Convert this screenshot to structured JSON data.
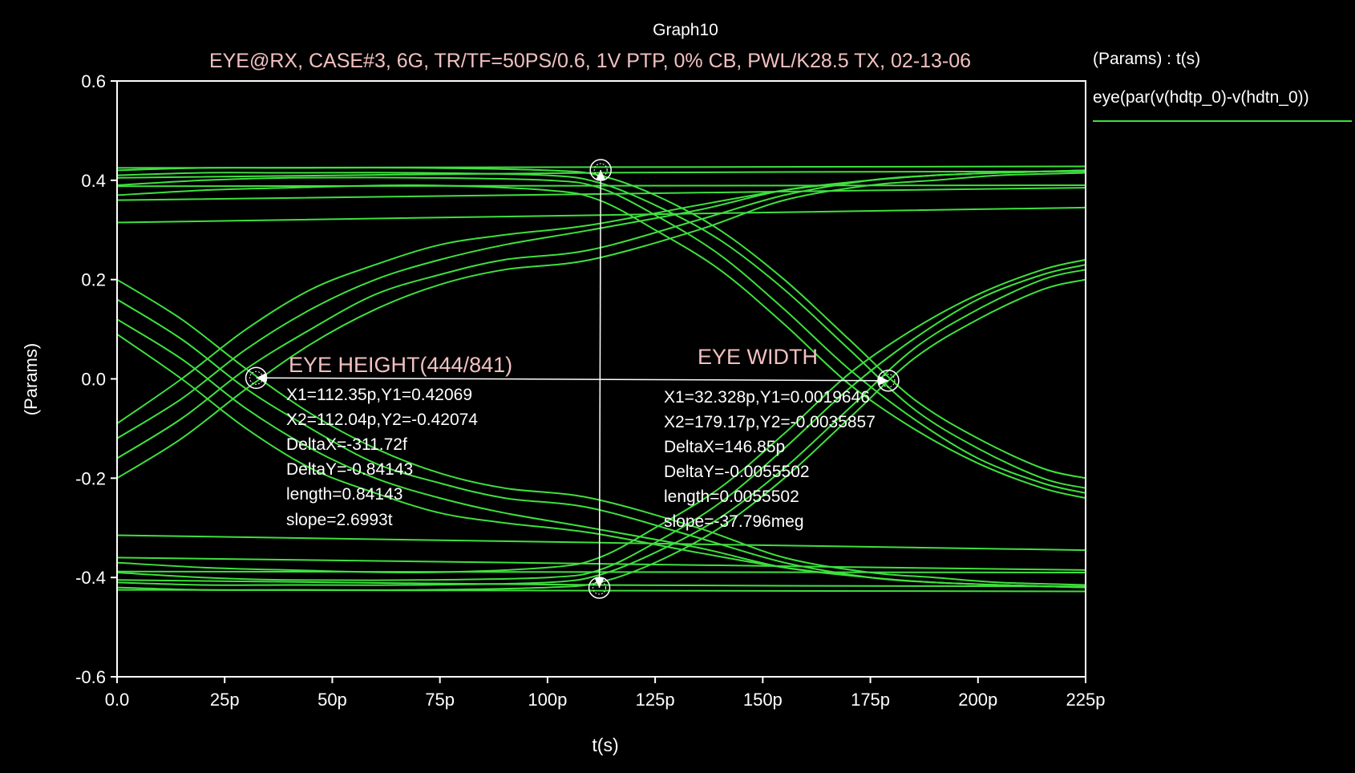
{
  "chart_data": {
    "type": "line",
    "graph_label": "Graph10",
    "title": "EYE@RX, CASE#3, 6G, TR/TF=50PS/0.6, 1V PTP, 0% CB, PWL/K28.5 TX, 02-13-06",
    "xlabel": "t(s)",
    "ylabel": "(Params)",
    "xlim": [
      0,
      225
    ],
    "x_unit": "ps",
    "ylim": [
      -0.6,
      0.6
    ],
    "x_ticks": [
      0,
      25,
      50,
      75,
      100,
      125,
      150,
      175,
      200,
      225
    ],
    "x_tick_labels": [
      "0.0",
      "25p",
      "50p",
      "75p",
      "100p",
      "125p",
      "150p",
      "175p",
      "200p",
      "225p"
    ],
    "y_ticks": [
      0.6,
      0.4,
      0.2,
      0.0,
      -0.2,
      -0.4,
      -0.6
    ],
    "y_tick_labels": [
      "0.6",
      "0.4",
      "0.2",
      "0.0",
      "-0.2",
      "-0.4",
      "-0.6"
    ],
    "grid": false,
    "legend_position": "right",
    "legend": {
      "header": "(Params) : t(s)",
      "entry": "eye(par(v(hdtp_0)-v(hdtn_0))"
    },
    "series_color": "#3ee03e",
    "background": "#000000",
    "series": [
      {
        "x": [
          0,
          225
        ],
        "y": [
          0.425,
          0.428
        ]
      },
      {
        "x": [
          0,
          112,
          225
        ],
        "y": [
          0.405,
          0.415,
          0.418
        ]
      },
      {
        "x": [
          0,
          225
        ],
        "y": [
          0.388,
          0.39
        ]
      },
      {
        "x": [
          0,
          225
        ],
        "y": [
          0.36,
          0.385
        ]
      },
      {
        "x": [
          0,
          225
        ],
        "y": [
          0.315,
          0.345
        ]
      },
      {
        "x": [
          0,
          225
        ],
        "y": [
          -0.425,
          -0.428
        ]
      },
      {
        "x": [
          0,
          112,
          225
        ],
        "y": [
          -0.405,
          -0.415,
          -0.418
        ]
      },
      {
        "x": [
          0,
          225
        ],
        "y": [
          -0.388,
          -0.39
        ]
      },
      {
        "x": [
          0,
          225
        ],
        "y": [
          -0.36,
          -0.385
        ]
      },
      {
        "x": [
          0,
          225
        ],
        "y": [
          -0.315,
          -0.345
        ]
      },
      {
        "x": [
          0,
          15,
          30,
          45,
          60,
          75,
          90,
          110,
          135,
          155,
          175,
          190,
          205,
          225
        ],
        "y": [
          -0.2,
          -0.12,
          -0.02,
          0.07,
          0.14,
          0.19,
          0.22,
          0.24,
          0.3,
          0.36,
          0.39,
          0.4,
          0.41,
          0.415
        ]
      },
      {
        "x": [
          0,
          15,
          30,
          45,
          60,
          75,
          90,
          110,
          135,
          155,
          175,
          190,
          205,
          225
        ],
        "y": [
          -0.16,
          -0.08,
          0.02,
          0.1,
          0.17,
          0.21,
          0.24,
          0.26,
          0.32,
          0.37,
          0.4,
          0.41,
          0.415,
          0.42
        ]
      },
      {
        "x": [
          0,
          15,
          30,
          45,
          60,
          75,
          90,
          110,
          135,
          155,
          175,
          190,
          205,
          225
        ],
        "y": [
          -0.12,
          -0.04,
          0.06,
          0.14,
          0.2,
          0.24,
          0.27,
          0.3,
          0.34,
          0.38,
          0.4,
          0.41,
          0.415,
          0.42
        ]
      },
      {
        "x": [
          0,
          15,
          30,
          45,
          60,
          75,
          90,
          110,
          135,
          155,
          175,
          190,
          205,
          225
        ],
        "y": [
          -0.09,
          0.0,
          0.1,
          0.18,
          0.23,
          0.27,
          0.29,
          0.31,
          0.35,
          0.38,
          0.4,
          0.41,
          0.415,
          0.42
        ]
      },
      {
        "x": [
          0,
          15,
          30,
          45,
          60,
          75,
          90,
          110,
          135,
          155,
          175,
          190,
          205,
          225
        ],
        "y": [
          0.2,
          0.12,
          0.02,
          -0.07,
          -0.14,
          -0.19,
          -0.22,
          -0.24,
          -0.3,
          -0.36,
          -0.39,
          -0.4,
          -0.41,
          -0.415
        ]
      },
      {
        "x": [
          0,
          15,
          30,
          45,
          60,
          75,
          90,
          110,
          135,
          155,
          175,
          190,
          205,
          225
        ],
        "y": [
          0.16,
          0.08,
          -0.02,
          -0.1,
          -0.17,
          -0.21,
          -0.24,
          -0.26,
          -0.32,
          -0.37,
          -0.4,
          -0.41,
          -0.415,
          -0.42
        ]
      },
      {
        "x": [
          0,
          15,
          30,
          45,
          60,
          75,
          90,
          110,
          135,
          155,
          175,
          190,
          205,
          225
        ],
        "y": [
          0.12,
          0.04,
          -0.06,
          -0.14,
          -0.2,
          -0.24,
          -0.27,
          -0.3,
          -0.34,
          -0.38,
          -0.4,
          -0.41,
          -0.415,
          -0.42
        ]
      },
      {
        "x": [
          0,
          15,
          30,
          45,
          60,
          75,
          90,
          110,
          135,
          155,
          175,
          190,
          205,
          225
        ],
        "y": [
          0.09,
          0.0,
          -0.1,
          -0.18,
          -0.23,
          -0.27,
          -0.29,
          -0.31,
          -0.35,
          -0.38,
          -0.4,
          -0.41,
          -0.415,
          -0.42
        ]
      },
      {
        "x": [
          0,
          20,
          40,
          70,
          100,
          112,
          125,
          140,
          155,
          170,
          185,
          200,
          215,
          225
        ],
        "y": [
          0.42,
          0.425,
          0.425,
          0.425,
          0.42,
          0.41,
          0.37,
          0.3,
          0.2,
          0.08,
          -0.04,
          -0.12,
          -0.18,
          -0.2
        ]
      },
      {
        "x": [
          0,
          20,
          40,
          70,
          100,
          112,
          125,
          140,
          155,
          170,
          185,
          200,
          215,
          225
        ],
        "y": [
          0.41,
          0.415,
          0.415,
          0.415,
          0.41,
          0.395,
          0.35,
          0.28,
          0.18,
          0.06,
          -0.06,
          -0.14,
          -0.2,
          -0.22
        ]
      },
      {
        "x": [
          0,
          20,
          40,
          70,
          100,
          112,
          125,
          140,
          155,
          170,
          185,
          200,
          215,
          225
        ],
        "y": [
          0.39,
          0.4,
          0.405,
          0.405,
          0.4,
          0.385,
          0.33,
          0.25,
          0.14,
          0.02,
          -0.08,
          -0.16,
          -0.21,
          -0.23
        ]
      },
      {
        "x": [
          0,
          20,
          40,
          70,
          100,
          112,
          125,
          140,
          155,
          170,
          185,
          200,
          215,
          225
        ],
        "y": [
          0.37,
          0.38,
          0.385,
          0.39,
          0.38,
          0.36,
          0.3,
          0.22,
          0.11,
          -0.01,
          -0.1,
          -0.17,
          -0.22,
          -0.24
        ]
      },
      {
        "x": [
          0,
          20,
          40,
          70,
          100,
          112,
          125,
          140,
          155,
          170,
          185,
          200,
          215,
          225
        ],
        "y": [
          -0.42,
          -0.425,
          -0.425,
          -0.425,
          -0.42,
          -0.41,
          -0.37,
          -0.3,
          -0.2,
          -0.08,
          0.04,
          0.12,
          0.18,
          0.2
        ]
      },
      {
        "x": [
          0,
          20,
          40,
          70,
          100,
          112,
          125,
          140,
          155,
          170,
          185,
          200,
          215,
          225
        ],
        "y": [
          -0.41,
          -0.415,
          -0.415,
          -0.415,
          -0.41,
          -0.395,
          -0.35,
          -0.28,
          -0.18,
          -0.06,
          0.06,
          0.14,
          0.2,
          0.22
        ]
      },
      {
        "x": [
          0,
          20,
          40,
          70,
          100,
          112,
          125,
          140,
          155,
          170,
          185,
          200,
          215,
          225
        ],
        "y": [
          -0.39,
          -0.4,
          -0.405,
          -0.405,
          -0.4,
          -0.385,
          -0.33,
          -0.25,
          -0.14,
          -0.02,
          0.08,
          0.16,
          0.21,
          0.23
        ]
      },
      {
        "x": [
          0,
          20,
          40,
          70,
          100,
          112,
          125,
          140,
          155,
          170,
          185,
          200,
          215,
          225
        ],
        "y": [
          -0.37,
          -0.38,
          -0.385,
          -0.39,
          -0.38,
          -0.36,
          -0.3,
          -0.22,
          -0.11,
          0.01,
          0.1,
          0.17,
          0.22,
          0.24
        ]
      }
    ],
    "measurements": [
      {
        "title": "EYE HEIGHT(444/841)",
        "p1": {
          "x": 112.35,
          "y": 0.42069
        },
        "p2": {
          "x": 112.04,
          "y": -0.42074
        },
        "lines": [
          "X1=112.35p,Y1=0.42069",
          "X2=112.04p,Y2=-0.42074",
          "DeltaX=-311.72f",
          "DeltaY=-0.84143",
          "length=0.84143",
          "slope=2.6993t"
        ]
      },
      {
        "title": "EYE WIDTH",
        "p1": {
          "x": 32.328,
          "y": 0.0019646
        },
        "p2": {
          "x": 179.17,
          "y": -0.0035857
        },
        "lines": [
          "X1=32.328p,Y1=0.0019646",
          "X2=179.17p,Y2=-0.0035857",
          "DeltaX=146.85p",
          "DeltaY=-0.0055502",
          "length=0.0055502",
          "slope=-37.796meg"
        ]
      }
    ]
  }
}
